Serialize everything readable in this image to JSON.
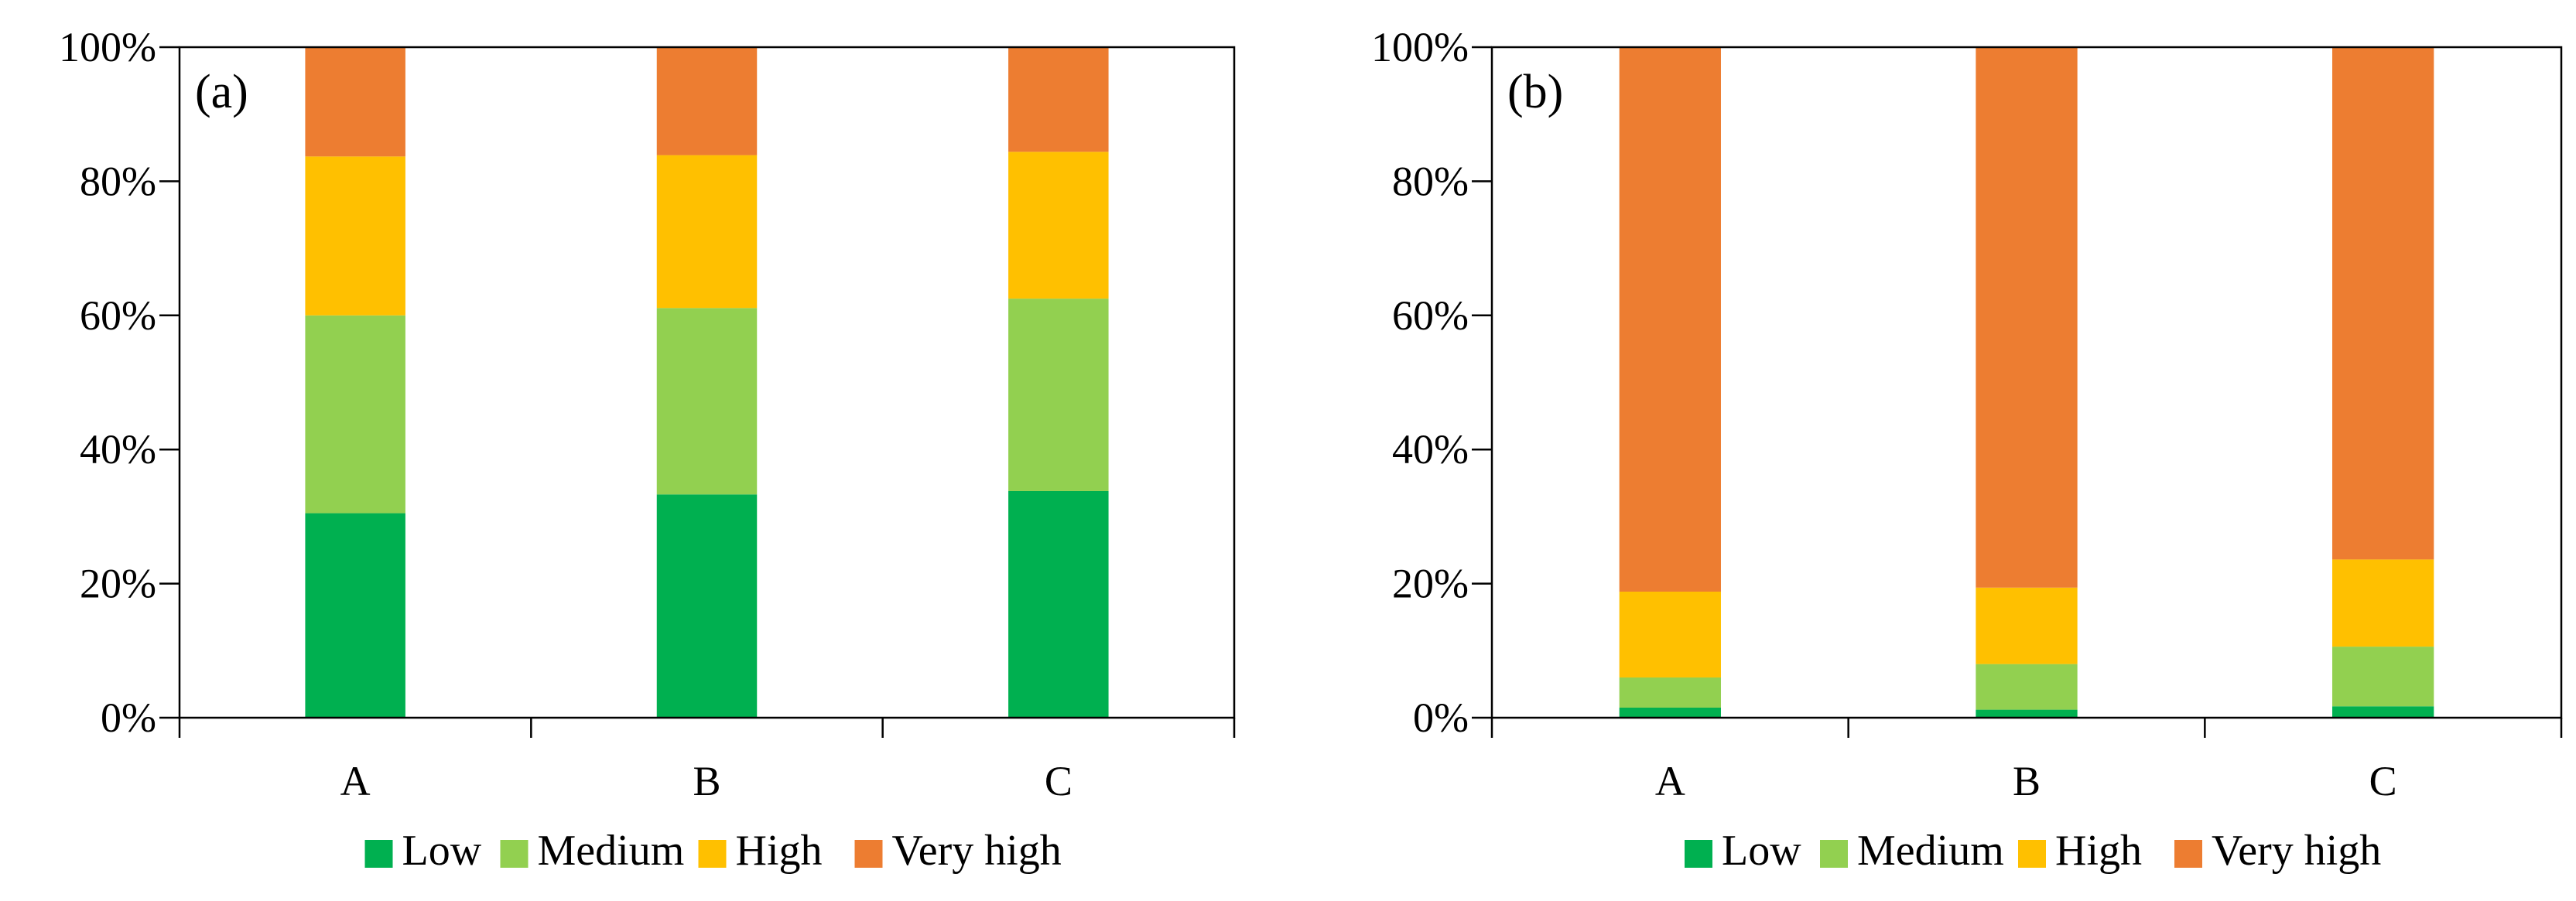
{
  "colors": {
    "Low": "#00b050",
    "Medium": "#92d050",
    "High": "#ffc000",
    "Very high": "#ed7d31",
    "axis": "#000000",
    "frame": "#000000"
  },
  "chart_data": [
    {
      "type": "bar",
      "stacked": true,
      "percent": true,
      "panel_label": "(a)",
      "categories": [
        "A",
        "B",
        "C"
      ],
      "series": [
        {
          "name": "Low",
          "values": [
            30.5,
            33.3,
            33.8
          ]
        },
        {
          "name": "Medium",
          "values": [
            29.5,
            27.8,
            28.7
          ]
        },
        {
          "name": "High",
          "values": [
            23.7,
            22.8,
            21.9
          ]
        },
        {
          "name": "Very high",
          "values": [
            16.3,
            16.1,
            15.6
          ]
        }
      ],
      "yticks": [
        "0%",
        "20%",
        "40%",
        "60%",
        "80%",
        "100%"
      ],
      "ylim": [
        0,
        100
      ],
      "legend": [
        "Low",
        "Medium",
        "High",
        "Very high"
      ],
      "legend_position": "bottom"
    },
    {
      "type": "bar",
      "stacked": true,
      "percent": true,
      "panel_label": "(b)",
      "categories": [
        "A",
        "B",
        "C"
      ],
      "series": [
        {
          "name": "Low",
          "values": [
            1.5,
            1.2,
            1.7
          ]
        },
        {
          "name": "Medium",
          "values": [
            4.5,
            6.8,
            8.9
          ]
        },
        {
          "name": "High",
          "values": [
            12.8,
            11.4,
            13.0
          ]
        },
        {
          "name": "Very high",
          "values": [
            81.2,
            80.6,
            76.4
          ]
        }
      ],
      "yticks": [
        "0%",
        "20%",
        "40%",
        "60%",
        "80%",
        "100%"
      ],
      "ylim": [
        0,
        100
      ],
      "legend": [
        "Low",
        "Medium",
        "High",
        "Very high"
      ],
      "legend_position": "bottom"
    }
  ]
}
